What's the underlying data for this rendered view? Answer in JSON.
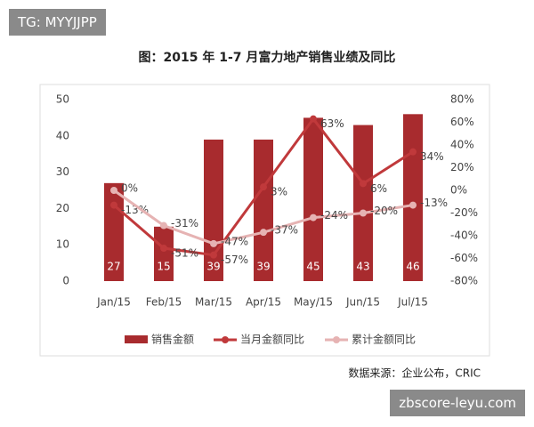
{
  "chart_data": {
    "type": "bar",
    "title": "图：2015 年 1-7 月富力地产销售业绩及同比",
    "source": "数据来源：企业公布，CRIC",
    "categories": [
      "Jan/15",
      "Feb/15",
      "Mar/15",
      "Apr/15",
      "May/15",
      "Jun/15",
      "Jul/15"
    ],
    "series": [
      {
        "name": "销售金额",
        "type": "bar",
        "color": "#a82b2e",
        "values": [
          27,
          15,
          39,
          39,
          45,
          43,
          46
        ]
      },
      {
        "name": "当月金额同比",
        "type": "line",
        "axis": "y2",
        "color": "#c0393b",
        "values": [
          -13,
          -51,
          -57,
          3,
          63,
          6,
          34
        ],
        "value_labels": [
          "-13%",
          "-51%",
          "-57%",
          "3%",
          "63%",
          "6%",
          "34%"
        ]
      },
      {
        "name": "累计金额同比",
        "type": "line",
        "axis": "y2",
        "color": "#e6b3b3",
        "values": [
          0,
          -31,
          -47,
          -37,
          -24,
          -20,
          -13
        ],
        "value_labels": [
          "0%",
          "-31%",
          "-47%",
          "-37%",
          "-24%",
          "-20%",
          "-13%"
        ]
      }
    ],
    "ylim": [
      0,
      50
    ],
    "yticks": [
      0,
      10,
      20,
      30,
      40,
      50
    ],
    "y2lim": [
      -80,
      80
    ],
    "y2ticks": [
      {
        "value": -80,
        "label": "-80%"
      },
      {
        "value": -60,
        "label": "-60%"
      },
      {
        "value": -40,
        "label": "-40%"
      },
      {
        "value": -20,
        "label": "-20%"
      },
      {
        "value": 0,
        "label": "0%"
      },
      {
        "value": 20,
        "label": "20%"
      },
      {
        "value": 40,
        "label": "40%"
      },
      {
        "value": 60,
        "label": "60%"
      },
      {
        "value": 80,
        "label": "80%"
      }
    ],
    "legend": "bottom"
  },
  "overlay": {
    "tag": "TG: MYYJJPP",
    "site": "zbscore-leyu.com"
  }
}
